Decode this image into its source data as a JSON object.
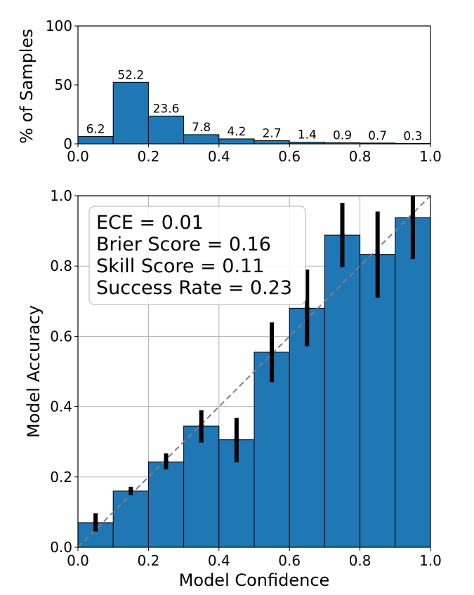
{
  "chart_data": [
    {
      "type": "bar",
      "name": "histogram",
      "ylabel": "% of Samples",
      "xlim": [
        0.0,
        1.0
      ],
      "ylim": [
        0,
        100
      ],
      "x_ticks": [
        "0.0",
        "0.2",
        "0.4",
        "0.6",
        "0.8",
        "1.0"
      ],
      "y_ticks": [
        "0",
        "50",
        "100"
      ],
      "bins": [
        [
          0.0,
          0.1
        ],
        [
          0.1,
          0.2
        ],
        [
          0.2,
          0.3
        ],
        [
          0.3,
          0.4
        ],
        [
          0.4,
          0.5
        ],
        [
          0.5,
          0.6
        ],
        [
          0.6,
          0.7
        ],
        [
          0.7,
          0.8
        ],
        [
          0.8,
          0.9
        ],
        [
          0.9,
          1.0
        ]
      ],
      "values": [
        6.2,
        52.2,
        23.6,
        7.8,
        4.2,
        2.7,
        1.4,
        0.9,
        0.7,
        0.3
      ],
      "value_labels": [
        "6.2",
        "52.2",
        "23.6",
        "7.8",
        "4.2",
        "2.7",
        "1.4",
        "0.9",
        "0.7",
        "0.3"
      ],
      "bar_color": "#1f77b4",
      "grid": false
    },
    {
      "type": "bar",
      "name": "reliability",
      "xlabel": "Model Confidence",
      "ylabel": "Model Accuracy",
      "xlim": [
        0.0,
        1.0
      ],
      "ylim": [
        0.0,
        1.0
      ],
      "x_ticks": [
        "0.0",
        "0.2",
        "0.4",
        "0.6",
        "0.8",
        "1.0"
      ],
      "y_ticks": [
        "0.0",
        "0.2",
        "0.4",
        "0.6",
        "0.8",
        "1.0"
      ],
      "bins": [
        [
          0.0,
          0.1
        ],
        [
          0.1,
          0.2
        ],
        [
          0.2,
          0.3
        ],
        [
          0.3,
          0.4
        ],
        [
          0.4,
          0.5
        ],
        [
          0.5,
          0.6
        ],
        [
          0.6,
          0.7
        ],
        [
          0.7,
          0.8
        ],
        [
          0.8,
          0.9
        ],
        [
          0.9,
          1.0
        ]
      ],
      "values": [
        0.07,
        0.16,
        0.243,
        0.345,
        0.306,
        0.555,
        0.68,
        0.888,
        0.833,
        0.938
      ],
      "error_bars": {
        "x": [
          0.05,
          0.15,
          0.25,
          0.35,
          0.45,
          0.55,
          0.65,
          0.75,
          0.85,
          0.95
        ],
        "low": [
          0.045,
          0.148,
          0.222,
          0.298,
          0.242,
          0.47,
          0.572,
          0.797,
          0.71,
          0.82
        ],
        "high": [
          0.097,
          0.172,
          0.267,
          0.39,
          0.368,
          0.64,
          0.79,
          0.98,
          0.955,
          1.0
        ]
      },
      "reference_line": {
        "from": [
          0,
          0
        ],
        "to": [
          1,
          1
        ],
        "style": "dashed",
        "color": "#808080"
      },
      "bar_color": "#1f77b4",
      "grid": true,
      "annotation": {
        "placement": "top-left",
        "lines": [
          "ECE = 0.01",
          "Brier Score = 0.16",
          "Skill Score = 0.11",
          "Success Rate = 0.23"
        ]
      }
    }
  ]
}
